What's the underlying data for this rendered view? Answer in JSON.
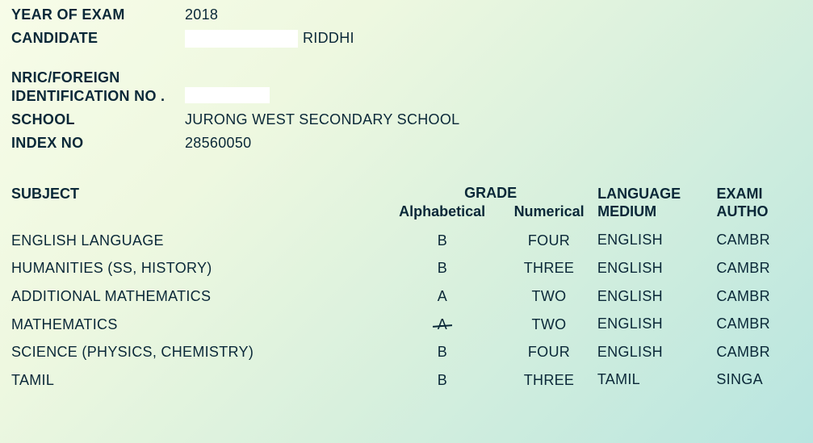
{
  "header": {
    "year_label": "YEAR OF EXAM",
    "year_value": "2018",
    "candidate_label": "CANDIDATE",
    "candidate_suffix": "RIDDHI",
    "id_label_line1": "NRIC/FOREIGN",
    "id_label_line2": "IDENTIFICATION NO .",
    "school_label": "SCHOOL",
    "school_value": "JURONG WEST SECONDARY SCHOOL",
    "index_label": "INDEX NO",
    "index_value": "28560050"
  },
  "table": {
    "headers": {
      "subject": "SUBJECT",
      "grade": "GRADE",
      "alpha": "Alphabetical",
      "numerical": "Numerical",
      "lang_line1": "LANGUAGE",
      "lang_line2": "MEDIUM",
      "auth_line1": "EXAMI",
      "auth_line2": "AUTHO"
    },
    "rows": [
      {
        "subject": "ENGLISH LANGUAGE",
        "alpha": "B",
        "num": "FOUR",
        "lang": "ENGLISH",
        "auth": "CAMBR",
        "strike": false
      },
      {
        "subject": "HUMANITIES (SS, HISTORY)",
        "alpha": "B",
        "num": "THREE",
        "lang": "ENGLISH",
        "auth": "CAMBR",
        "strike": false
      },
      {
        "subject": "ADDITIONAL MATHEMATICS",
        "alpha": "A",
        "num": "TWO",
        "lang": "ENGLISH",
        "auth": "CAMBR",
        "strike": false
      },
      {
        "subject": "MATHEMATICS",
        "alpha": "A",
        "num": "TWO",
        "lang": "ENGLISH",
        "auth": "CAMBR",
        "strike": true
      },
      {
        "subject": "SCIENCE (PHYSICS, CHEMISTRY)",
        "alpha": "B",
        "num": "FOUR",
        "lang": "ENGLISH",
        "auth": "CAMBR",
        "strike": false
      },
      {
        "subject": "TAMIL",
        "alpha": "B",
        "num": "THREE",
        "lang": "TAMIL",
        "auth": "SINGA",
        "strike": false
      }
    ]
  },
  "style": {
    "text_color": "#0a2838",
    "bg_gradient_start": "#f7fce8",
    "bg_gradient_end": "#b8e5e0",
    "redact_color": "#ffffff",
    "font_size_base": 18
  }
}
